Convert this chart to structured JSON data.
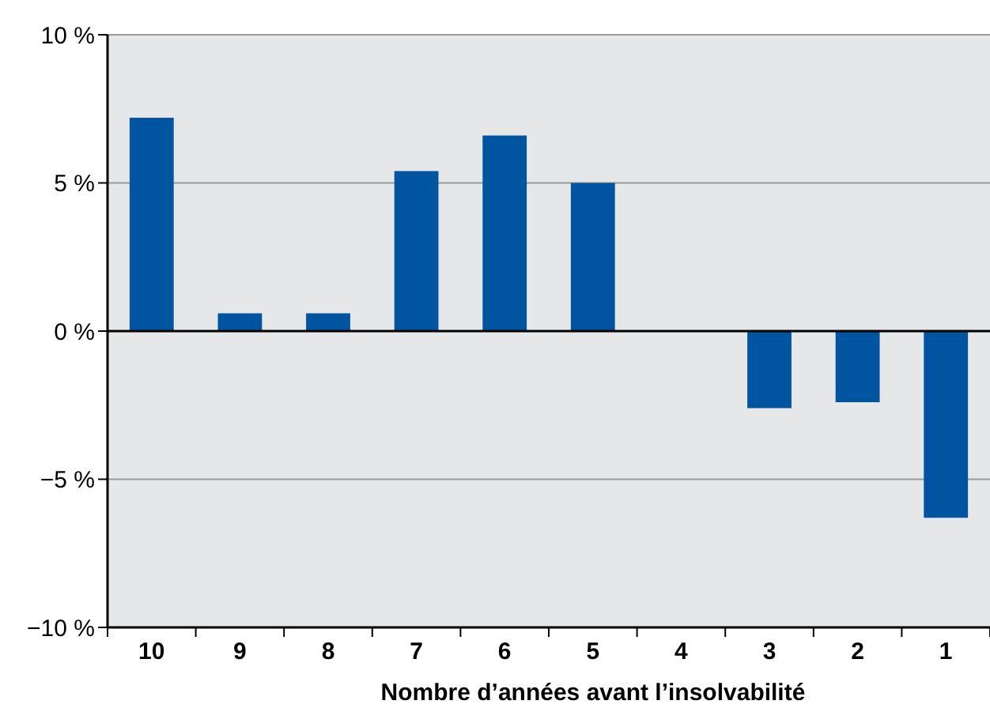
{
  "chart_data": {
    "type": "bar",
    "xlabel": "Nombre d’années avant l’insolvabilité",
    "categories": [
      "10",
      "9",
      "8",
      "7",
      "6",
      "5",
      "4",
      "3",
      "2",
      "1"
    ],
    "values": [
      7.2,
      0.6,
      0.6,
      5.4,
      6.6,
      5.0,
      0,
      -2.6,
      -2.4,
      -6.3
    ],
    "color": "#0054a0",
    "ylim": [
      -10,
      10
    ],
    "yticks": [
      {
        "value": -10,
        "label": "−10 %"
      },
      {
        "value": -5,
        "label": "−5 %"
      },
      {
        "value": 0,
        "label": "0 %"
      },
      {
        "value": 5,
        "label": "5 %"
      },
      {
        "value": 10,
        "label": "10 %"
      }
    ],
    "grid": "y"
  }
}
